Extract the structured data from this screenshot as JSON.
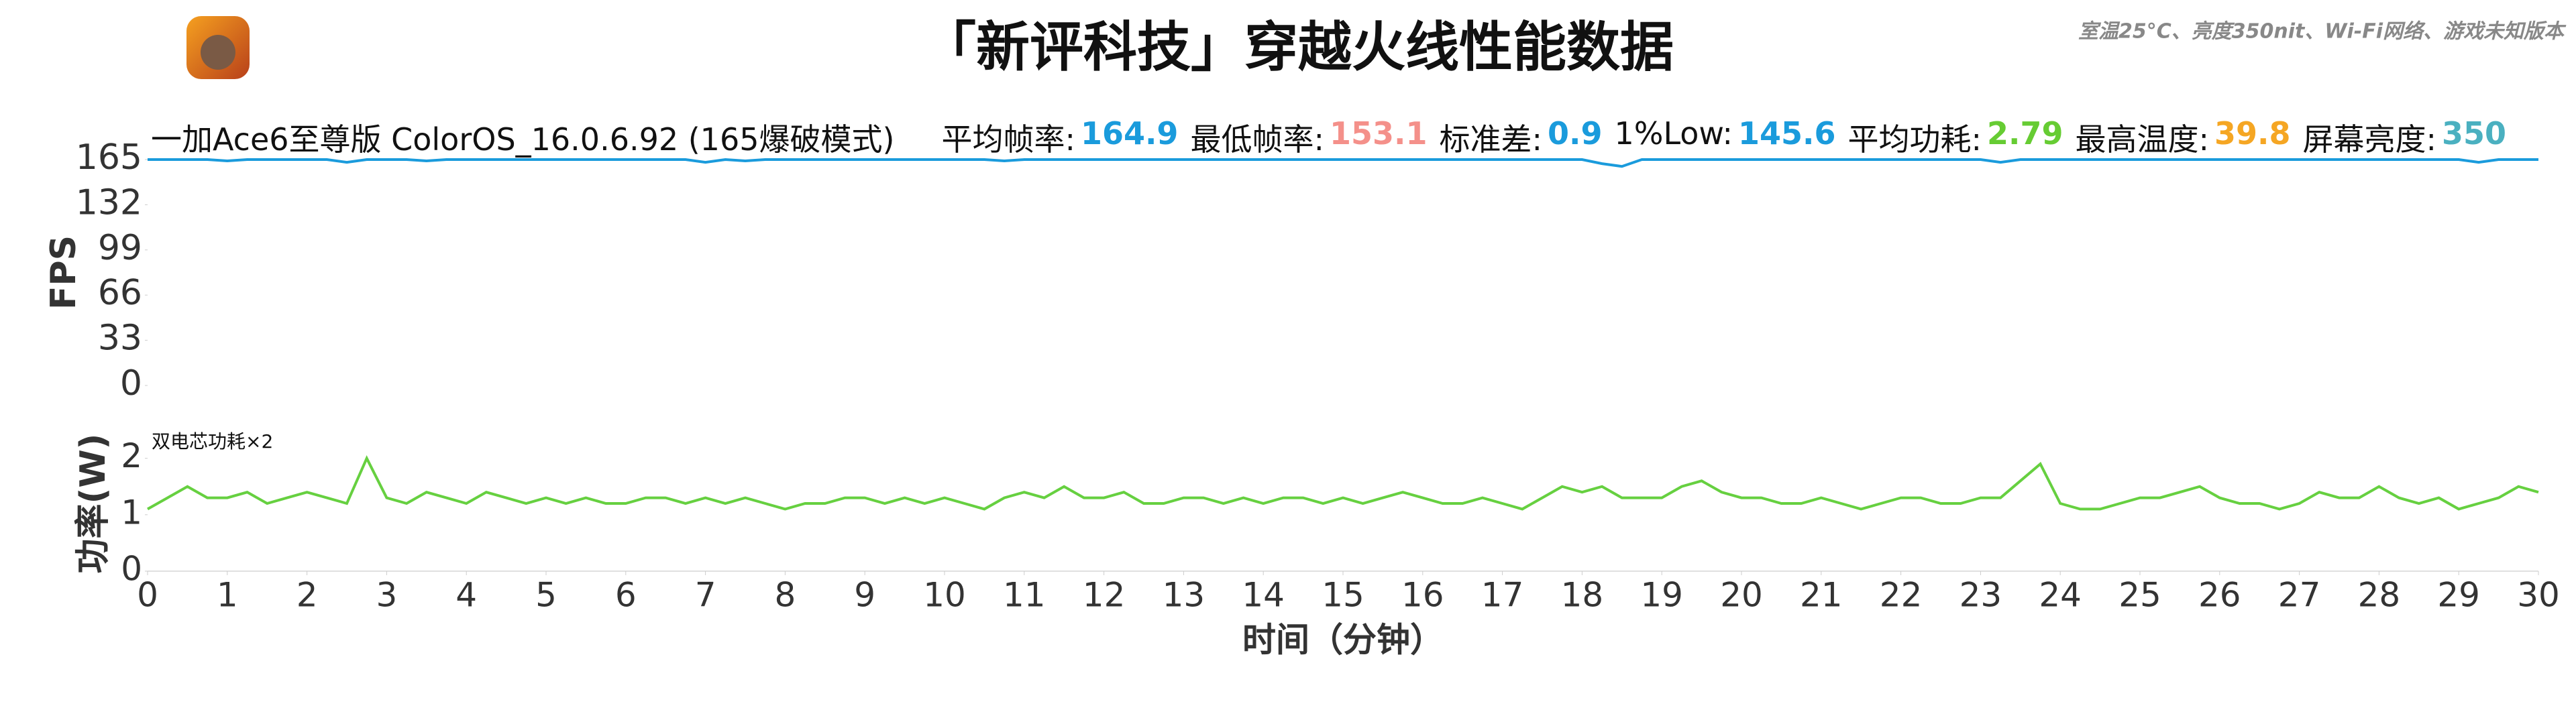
{
  "title": "「新评科技」穿越火线性能数据",
  "note": "室温25°C、亮度350nit、Wi-Fi网络、游戏未知版本",
  "device": "一加Ace6至尊版 ColorOS_16.0.6.92 (165爆破模式)",
  "stats": [
    {
      "label": "平均帧率:",
      "value": 164.9,
      "color": "#1a9bdc"
    },
    {
      "label": "最低帧率:",
      "value": 153.1,
      "color": "#f4908a"
    },
    {
      "label": "标准差:",
      "value": 0.9,
      "color": "#1a9bdc"
    },
    {
      "label": "1%Low:",
      "value": 145.6,
      "color": "#1a9bdc"
    },
    {
      "label": "平均功耗:",
      "value": 2.79,
      "color": "#66cc33"
    },
    {
      "label": "最高温度:",
      "value": 39.8,
      "color": "#f5a623"
    },
    {
      "label": "屏幕亮度:",
      "value": 350,
      "color": "#4ab0c0"
    }
  ],
  "chart_data": [
    {
      "type": "line",
      "ylabel": "FPS",
      "color": "#1a9bdc",
      "xlim": [
        0,
        30
      ],
      "ylim": [
        0,
        165
      ],
      "yticks": [
        0,
        33,
        66,
        99,
        132,
        165
      ],
      "x": [
        0,
        0.25,
        0.5,
        0.75,
        1,
        1.25,
        1.5,
        1.75,
        2,
        2.25,
        2.5,
        2.75,
        3,
        3.25,
        3.5,
        3.75,
        4,
        4.25,
        4.5,
        4.75,
        5,
        5.25,
        5.5,
        5.75,
        6,
        6.25,
        6.5,
        6.75,
        7,
        7.25,
        7.5,
        7.75,
        8,
        8.25,
        8.5,
        8.75,
        9,
        9.25,
        9.5,
        9.75,
        10,
        10.25,
        10.5,
        10.75,
        11,
        11.25,
        11.5,
        11.75,
        12,
        12.25,
        12.5,
        12.75,
        13,
        13.25,
        13.5,
        13.75,
        14,
        14.25,
        14.5,
        14.75,
        15,
        15.25,
        15.5,
        15.75,
        16,
        16.25,
        16.5,
        16.75,
        17,
        17.25,
        17.5,
        17.75,
        18,
        18.25,
        18.5,
        18.75,
        19,
        19.25,
        19.5,
        19.75,
        20,
        20.25,
        20.5,
        20.75,
        21,
        21.25,
        21.5,
        21.75,
        22,
        22.25,
        22.5,
        22.75,
        23,
        23.25,
        23.5,
        23.75,
        24,
        24.25,
        24.5,
        24.75,
        25,
        25.25,
        25.5,
        25.75,
        26,
        26.25,
        26.5,
        26.75,
        27,
        27.25,
        27.5,
        27.75,
        28,
        28.25,
        28.5,
        28.75,
        29,
        29.25,
        29.5,
        29.75,
        30
      ],
      "values": [
        165,
        165,
        165,
        165,
        164,
        165,
        165,
        165,
        165,
        165,
        163,
        165,
        165,
        165,
        164,
        165,
        165,
        165,
        165,
        165,
        165,
        165,
        165,
        165,
        165,
        165,
        165,
        165,
        163,
        165,
        164,
        165,
        165,
        165,
        165,
        165,
        165,
        165,
        165,
        165,
        165,
        165,
        165,
        164,
        165,
        165,
        165,
        165,
        165,
        165,
        165,
        165,
        165,
        165,
        165,
        165,
        165,
        165,
        165,
        165,
        165,
        165,
        165,
        165,
        165,
        165,
        165,
        165,
        165,
        165,
        165,
        165,
        165,
        162,
        160,
        165,
        165,
        165,
        165,
        165,
        165,
        165,
        165,
        165,
        165,
        165,
        165,
        165,
        165,
        165,
        165,
        165,
        165,
        163,
        165,
        165,
        165,
        165,
        165,
        165,
        165,
        165,
        165,
        165,
        165,
        165,
        165,
        165,
        165,
        165,
        165,
        165,
        165,
        165,
        165,
        165,
        165,
        163,
        165,
        165,
        165
      ]
    },
    {
      "type": "line",
      "ylabel": "功率(W)",
      "xlabel": "时间（分钟）",
      "annotation": "双电芯功耗×2",
      "color": "#66d040",
      "xlim": [
        0,
        30
      ],
      "ylim": [
        0,
        2.4
      ],
      "yticks": [
        0,
        1,
        2
      ],
      "xticks": [
        0,
        1,
        2,
        3,
        4,
        5,
        6,
        7,
        8,
        9,
        10,
        11,
        12,
        13,
        14,
        15,
        16,
        17,
        18,
        19,
        20,
        21,
        22,
        23,
        24,
        25,
        26,
        27,
        28,
        29,
        30
      ],
      "x": [
        0,
        0.25,
        0.5,
        0.75,
        1,
        1.25,
        1.5,
        1.75,
        2,
        2.25,
        2.5,
        2.75,
        3,
        3.25,
        3.5,
        3.75,
        4,
        4.25,
        4.5,
        4.75,
        5,
        5.25,
        5.5,
        5.75,
        6,
        6.25,
        6.5,
        6.75,
        7,
        7.25,
        7.5,
        7.75,
        8,
        8.25,
        8.5,
        8.75,
        9,
        9.25,
        9.5,
        9.75,
        10,
        10.25,
        10.5,
        10.75,
        11,
        11.25,
        11.5,
        11.75,
        12,
        12.25,
        12.5,
        12.75,
        13,
        13.25,
        13.5,
        13.75,
        14,
        14.25,
        14.5,
        14.75,
        15,
        15.25,
        15.5,
        15.75,
        16,
        16.25,
        16.5,
        16.75,
        17,
        17.25,
        17.5,
        17.75,
        18,
        18.25,
        18.5,
        18.75,
        19,
        19.25,
        19.5,
        19.75,
        20,
        20.25,
        20.5,
        20.75,
        21,
        21.25,
        21.5,
        21.75,
        22,
        22.25,
        22.5,
        22.75,
        23,
        23.25,
        23.5,
        23.75,
        24,
        24.25,
        24.5,
        24.75,
        25,
        25.25,
        25.5,
        25.75,
        26,
        26.25,
        26.5,
        26.75,
        27,
        27.25,
        27.5,
        27.75,
        28,
        28.25,
        28.5,
        28.75,
        29,
        29.25,
        29.5,
        29.75,
        30
      ],
      "values": [
        1.1,
        1.3,
        1.5,
        1.3,
        1.3,
        1.4,
        1.2,
        1.3,
        1.4,
        1.3,
        1.2,
        2.0,
        1.3,
        1.2,
        1.4,
        1.3,
        1.2,
        1.4,
        1.3,
        1.2,
        1.3,
        1.2,
        1.3,
        1.2,
        1.2,
        1.3,
        1.3,
        1.2,
        1.3,
        1.2,
        1.3,
        1.2,
        1.1,
        1.2,
        1.2,
        1.3,
        1.3,
        1.2,
        1.3,
        1.2,
        1.3,
        1.2,
        1.1,
        1.3,
        1.4,
        1.3,
        1.5,
        1.3,
        1.3,
        1.4,
        1.2,
        1.2,
        1.3,
        1.3,
        1.2,
        1.3,
        1.2,
        1.3,
        1.3,
        1.2,
        1.3,
        1.2,
        1.3,
        1.4,
        1.3,
        1.2,
        1.2,
        1.3,
        1.2,
        1.1,
        1.3,
        1.5,
        1.4,
        1.5,
        1.3,
        1.3,
        1.3,
        1.5,
        1.6,
        1.4,
        1.3,
        1.3,
        1.2,
        1.2,
        1.3,
        1.2,
        1.1,
        1.2,
        1.3,
        1.3,
        1.2,
        1.2,
        1.3,
        1.3,
        1.6,
        1.9,
        1.2,
        1.1,
        1.1,
        1.2,
        1.3,
        1.3,
        1.4,
        1.5,
        1.3,
        1.2,
        1.2,
        1.1,
        1.2,
        1.4,
        1.3,
        1.3,
        1.5,
        1.3,
        1.2,
        1.3,
        1.1,
        1.2,
        1.3,
        1.5,
        1.4
      ]
    }
  ]
}
